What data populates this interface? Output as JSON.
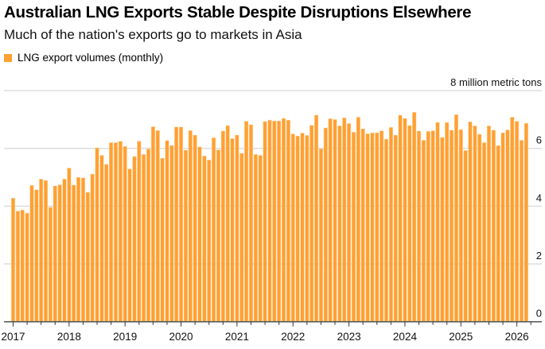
{
  "header": {
    "title": "Australian LNG Exports Stable Despite Disruptions Elsewhere",
    "subtitle": "Much of the nation's exports go to markets in Asia"
  },
  "colors": {
    "bar": "#ffa033",
    "bar_edge": "#ffd9a8",
    "grid": "#dddddd",
    "axis": "#555555"
  },
  "chart_data": {
    "type": "bar",
    "title": "Australian LNG Exports Stable Despite Disruptions Elsewhere",
    "subtitle": "Much of the nation's exports go to markets in Asia",
    "legend": {
      "position": "top-left",
      "entries": [
        "LNG export volumes (monthly)"
      ]
    },
    "series": [
      {
        "name": "LNG export volumes (monthly)"
      }
    ],
    "ylabel": "8 million metric tons",
    "ylim": [
      0,
      8
    ],
    "yticks": [
      "0",
      "2",
      "4",
      "6",
      "8 million metric tons"
    ],
    "ytick_values": [
      0,
      2,
      4,
      6,
      8
    ],
    "y_axis_side": "right",
    "grid": true,
    "x_start": "2017-01",
    "x_frequency": "monthly",
    "xticks": [
      "2017",
      "2018",
      "2019",
      "2020",
      "2021",
      "2022",
      "2023",
      "2024",
      "2025",
      "2026"
    ],
    "values": [
      4.28,
      3.83,
      3.87,
      3.76,
      4.72,
      4.57,
      4.94,
      4.89,
      3.96,
      4.7,
      4.74,
      4.94,
      5.32,
      4.73,
      5.0,
      4.98,
      4.48,
      5.11,
      6.02,
      5.76,
      5.45,
      6.2,
      6.2,
      6.25,
      6.07,
      5.29,
      5.72,
      6.25,
      5.79,
      5.98,
      6.75,
      6.62,
      5.66,
      6.27,
      6.1,
      6.74,
      6.74,
      5.94,
      6.62,
      6.46,
      6.05,
      5.74,
      5.6,
      6.37,
      5.95,
      6.6,
      6.79,
      6.34,
      6.46,
      5.83,
      6.94,
      6.82,
      5.79,
      5.76,
      6.93,
      6.98,
      6.95,
      6.95,
      7.04,
      6.98,
      6.5,
      6.43,
      6.53,
      6.45,
      6.8,
      7.15,
      5.99,
      6.71,
      7.03,
      7.0,
      6.78,
      7.06,
      6.86,
      6.56,
      7.08,
      6.68,
      6.51,
      6.54,
      6.54,
      6.61,
      6.32,
      6.73,
      6.46,
      7.15,
      7.04,
      6.79,
      7.25,
      6.6,
      6.28,
      6.59,
      6.61,
      6.9,
      6.38,
      6.9,
      6.63,
      7.17,
      6.65,
      5.93,
      6.92,
      6.78,
      6.49,
      6.2,
      6.78,
      6.63,
      6.1,
      6.54,
      6.64,
      7.08,
      6.94,
      6.28,
      6.87
    ]
  }
}
